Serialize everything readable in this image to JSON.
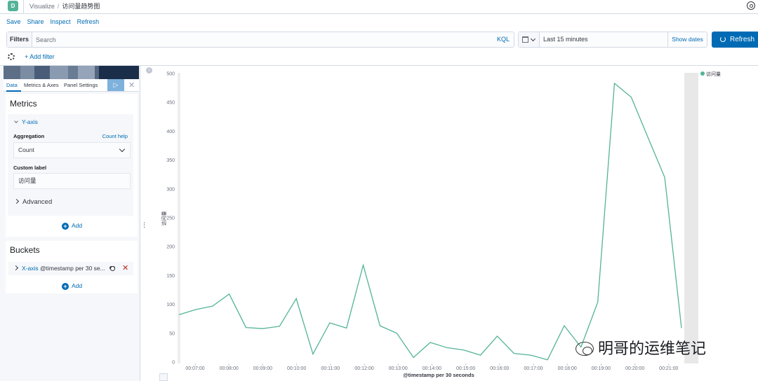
{
  "header": {
    "logo_letter": "D",
    "breadcrumbs": [
      "Visualize",
      "访问量趋势图"
    ]
  },
  "menu": [
    "Save",
    "Share",
    "Inspect",
    "Refresh"
  ],
  "query": {
    "filters_label": "Filters",
    "search_placeholder": "Search",
    "language": "KQL",
    "time_range": "Last 15 minutes",
    "show_dates": "Show dates",
    "refresh_label": "Refresh",
    "add_filter": "+ Add filter"
  },
  "editor": {
    "tabs": [
      "Data",
      "Metrics & Axes",
      "Panel Settings"
    ],
    "metrics": {
      "title": "Metrics",
      "y_axis": "Y-axis",
      "aggregation_label": "Aggregation",
      "help_link": "Count help",
      "aggregation_value": "Count",
      "custom_label_label": "Custom label",
      "custom_label_value": "访问量",
      "advanced": "Advanced",
      "add": "Add"
    },
    "buckets": {
      "title": "Buckets",
      "x_axis": "X-axis",
      "x_axis_desc": "@timestamp per 30 se...",
      "add": "Add"
    }
  },
  "watermark": "明哥的运维笔记",
  "chart_data": {
    "type": "line",
    "title": "",
    "xlabel": "@timestamp per 30 seconds",
    "ylabel": "访问量",
    "ylim": [
      0,
      500
    ],
    "yticks": [
      0,
      50,
      100,
      150,
      200,
      250,
      300,
      350,
      400,
      450,
      500
    ],
    "xtick_labels": [
      "00:07:00",
      "00:08:00",
      "00:09:00",
      "00:10:00",
      "00:11:00",
      "00:12:00",
      "00:13:00",
      "00:14:00",
      "00:15:00",
      "00:16:00",
      "00:17:00",
      "00:18:00",
      "00:19:00",
      "00:20:00",
      "00:21:00"
    ],
    "series": [
      {
        "name": "访问量",
        "color": "#54b399",
        "values": [
          82,
          91,
          97,
          118,
          60,
          58,
          62,
          110,
          14,
          68,
          59,
          168,
          63,
          50,
          8,
          34,
          25,
          21,
          12,
          45,
          15,
          12,
          4,
          63,
          26,
          104,
          483,
          459,
          389,
          320,
          59
        ]
      }
    ],
    "legend": "top-right",
    "grid": false
  }
}
